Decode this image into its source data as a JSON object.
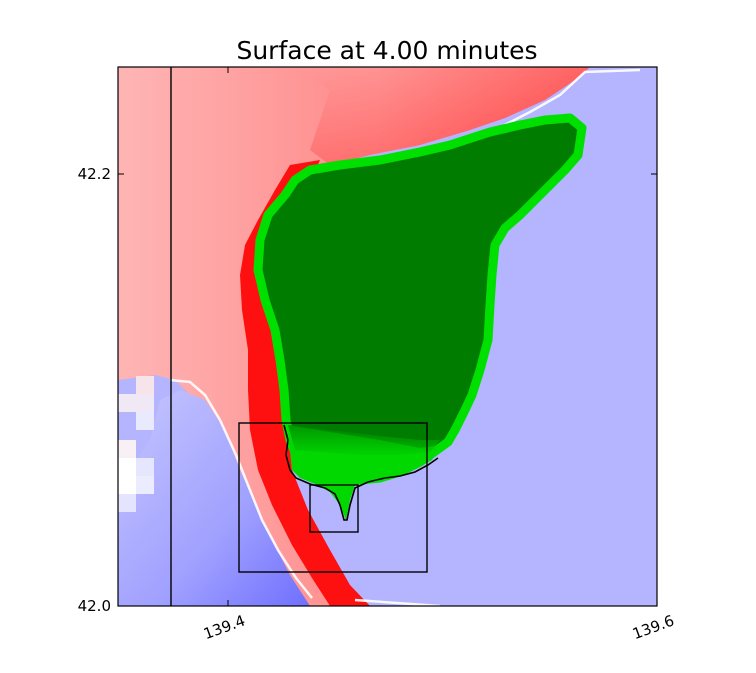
{
  "chart_data": {
    "type": "heatmap",
    "title": "Surface at 4.00 minutes",
    "xlabel": "",
    "ylabel": "",
    "xlim": [
      139.3,
      139.6
    ],
    "ylim": [
      42.0,
      42.25
    ],
    "x_ticks": [
      {
        "value": 139.4,
        "label": "139.4"
      },
      {
        "value": 139.6,
        "label": "139.6"
      }
    ],
    "y_ticks": [
      {
        "value": 42.0,
        "label": "42.0"
      },
      {
        "value": 42.2,
        "label": "42.2"
      }
    ],
    "grid": false,
    "colors": {
      "positive_surface": "#ff0000",
      "positive_surface_light": "#ffb0b0",
      "negative_surface": "#7777ff",
      "negative_surface_light": "#b4b4ff",
      "land_dry": "#007c00",
      "land_wet": "#00e000",
      "coastline": "#000000",
      "boxes": "#000000"
    },
    "meridian_line": {
      "x": 139.325
    },
    "region_boxes": [
      {
        "name": "region-box-large",
        "x": [
          139.356,
          139.443
        ],
        "y": [
          42.015,
          42.084
        ]
      },
      {
        "name": "region-box-small",
        "x": [
          139.392,
          139.414
        ],
        "y": [
          42.034,
          42.056
        ]
      }
    ]
  }
}
